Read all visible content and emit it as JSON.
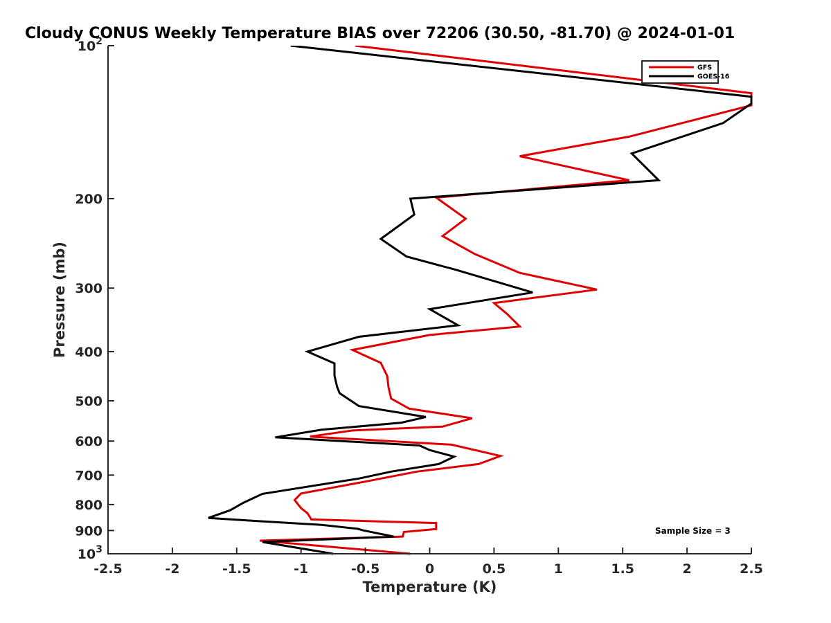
{
  "chart_data": {
    "type": "line",
    "title": "Cloudy CONUS Weekly Temperature BIAS over 72206 (30.50, -81.70) @ 2024-01-01",
    "xlabel": "Temperature (K)",
    "ylabel": "Pressure (mb)",
    "xlim": [
      -2.5,
      2.5
    ],
    "ylim": [
      100,
      1000
    ],
    "yscale": "log",
    "y_reversed": true,
    "x_ticks": [
      -2.5,
      -2,
      -1.5,
      -1,
      -0.5,
      0,
      0.5,
      1,
      1.5,
      2,
      2.5
    ],
    "x_tick_labels": [
      "-2.5",
      "-2",
      "-1.5",
      "-1",
      "-0.5",
      "0",
      "0.5",
      "1",
      "1.5",
      "2",
      "2.5"
    ],
    "y_ticks": [
      100,
      200,
      300,
      400,
      500,
      600,
      700,
      800,
      900,
      1000
    ],
    "y_tick_labels": [
      {
        "base": "10",
        "exp": "2"
      },
      {
        "base": "200",
        "exp": ""
      },
      {
        "base": "300",
        "exp": ""
      },
      {
        "base": "400",
        "exp": ""
      },
      {
        "base": "500",
        "exp": ""
      },
      {
        "base": "600",
        "exp": ""
      },
      {
        "base": "700",
        "exp": ""
      },
      {
        "base": "800",
        "exp": ""
      },
      {
        "base": "900",
        "exp": ""
      },
      {
        "base": "10",
        "exp": "3"
      }
    ],
    "legend_position": "top-right",
    "annotation": "Sample Size = 3",
    "series": [
      {
        "name": "GFS",
        "color": "#e00000",
        "x": [
          -0.58,
          2.5,
          2.5,
          1.55,
          0.7,
          1.55,
          0.05,
          0.28,
          0.1,
          0.35,
          0.7,
          1.3,
          0.5,
          0.6,
          0.7,
          0.0,
          -0.6,
          -0.38,
          -0.33,
          -0.32,
          -0.3,
          -0.16,
          0.33,
          0.1,
          -0.6,
          -0.93,
          0.17,
          0.55,
          0.38,
          -0.1,
          -0.5,
          -1.0,
          -1.05,
          -1.0,
          -0.95,
          -0.92,
          0.05,
          0.05,
          -0.2,
          -0.21,
          -1.32,
          -0.15
        ],
        "y": [
          100,
          124,
          131,
          151,
          165,
          184,
          199,
          219,
          237,
          257,
          280,
          302,
          321,
          337,
          357,
          371,
          397,
          421,
          447,
          470,
          495,
          518,
          541,
          562,
          572,
          588,
          610,
          642,
          666,
          689,
          721,
          761,
          784,
          813,
          832,
          856,
          870,
          894,
          906,
          925,
          942,
          1000
        ]
      },
      {
        "name": "GOES-16",
        "color": "#000000",
        "x": [
          -1.08,
          2.5,
          2.5,
          2.28,
          1.57,
          1.78,
          -0.15,
          -0.12,
          -0.38,
          -0.18,
          0.2,
          0.8,
          0.0,
          0.22,
          -0.55,
          -0.95,
          -0.74,
          -0.74,
          -0.72,
          -0.7,
          -0.55,
          -0.03,
          -0.22,
          -0.84,
          -1.2,
          -0.08,
          0.0,
          0.19,
          0.07,
          -0.3,
          -0.55,
          -1.3,
          -1.45,
          -1.55,
          -1.72,
          -1.38,
          -0.84,
          -0.56,
          -0.52,
          -0.28,
          -1.3,
          -0.75
        ],
        "y": [
          100,
          126,
          130,
          142,
          163,
          184,
          200,
          215,
          240,
          260,
          276,
          306,
          330,
          355,
          374,
          400,
          422,
          446,
          469,
          483,
          512,
          538,
          552,
          570,
          590,
          612,
          625,
          644,
          666,
          689,
          711,
          762,
          794,
          821,
          850,
          861,
          877,
          893,
          899,
          925,
          948,
          1000
        ]
      }
    ]
  }
}
